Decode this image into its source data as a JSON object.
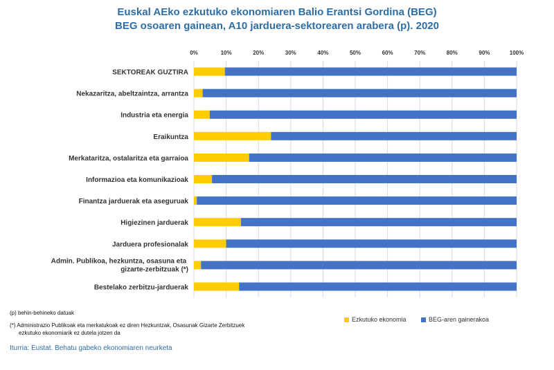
{
  "chart_data": {
    "type": "bar",
    "orientation": "horizontal",
    "stacked": true,
    "title": "Euskal AEko ezkutuko ekonomiaren Balio Erantsi Gordina (BEG)",
    "subtitle": "BEG osoaren gainean, A10 jarduera-sektorearen arabera (p). 2020",
    "categories": [
      "SEKTOREAK GUZTIRA",
      "Nekazaritza, abeltzaintza, arrantza",
      "Industria eta energia",
      "Eraikuntza",
      "Merkataritza, ostalaritza eta garraioa",
      "Informazioa eta komunikazioak",
      "Finantza jarduerak eta aseguruak",
      "Higiezinen jarduerak",
      "Jarduera profesionalak",
      "Admin. Publikoa, hezkuntza, osasuna eta gizarte-zerbitzuak (*)",
      "Bestelako zerbitzu-jarduerak"
    ],
    "series": [
      {
        "name": "Ezkutuko ekonomia",
        "color": "#ffcc00",
        "values": [
          9.6,
          2.7,
          4.9,
          23.9,
          17.1,
          5.6,
          0.9,
          14.6,
          10.0,
          2.2,
          14.0
        ]
      },
      {
        "name": "BEG-aren gainerakoa",
        "color": "#4472c4",
        "values": [
          90.4,
          97.3,
          95.1,
          76.1,
          82.9,
          94.4,
          99.1,
          85.4,
          90.0,
          97.8,
          86.0
        ]
      }
    ],
    "xticks": [
      "0%",
      "10%",
      "20%",
      "30%",
      "40%",
      "50%",
      "60%",
      "70%",
      "80%",
      "90%",
      "100%"
    ],
    "xlim": [
      0,
      100
    ],
    "grid": true,
    "legend_position": "bottom-right"
  },
  "notes": {
    "provisional": "(p) behin-behineko datuak",
    "asterisk_line1": "(*) Administrazio Publikoak eta merkatukoak ez diren Hezkuntzak, Osasunak  Gizarte Zerbitzuek",
    "asterisk_line2": "ezkutuko ekonomiarik ez dutela jotzen da"
  },
  "source": "Iturria: Eustat. Behatu gabeko ekonomiaren neurketa"
}
